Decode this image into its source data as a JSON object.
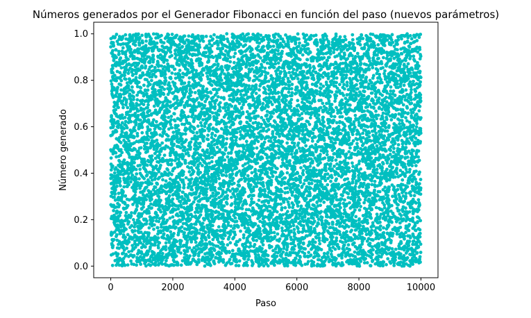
{
  "chart_data": {
    "type": "scatter",
    "title": "Números generados por el Generador Fibonacci en función del paso (nuevos parámetros)",
    "xlabel": "Paso",
    "ylabel": "Número generado",
    "xlim": [
      -550,
      10550
    ],
    "ylim": [
      -0.05,
      1.05
    ],
    "xticks": [
      0,
      2000,
      4000,
      6000,
      8000,
      10000
    ],
    "xtick_labels": [
      "0",
      "2000",
      "4000",
      "6000",
      "8000",
      "10000"
    ],
    "yticks": [
      0.0,
      0.2,
      0.4,
      0.6,
      0.8,
      1.0
    ],
    "ytick_labels": [
      "0.0",
      "0.2",
      "0.4",
      "0.6",
      "0.8",
      "1.0"
    ],
    "grid": false,
    "legend": "none",
    "marker_color": "#00bfc0",
    "series": [
      {
        "point_count": 10000,
        "x_start": 0,
        "x_step": 1,
        "y_distribution": "uniform",
        "y_range": [
          0.0,
          1.0
        ]
      }
    ]
  }
}
